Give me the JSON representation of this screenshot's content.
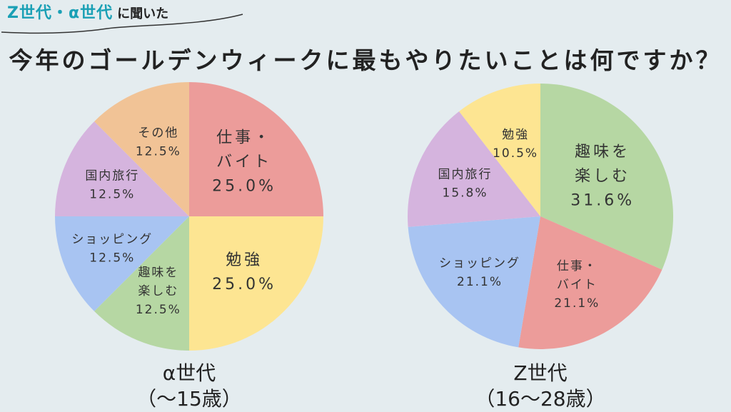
{
  "header": {
    "tag_colored": "Z世代・α世代",
    "tag_plain": "に聞いた",
    "title": "今年のゴールデンウィークに最もやりたいことは何ですか？"
  },
  "chart_data": [
    {
      "type": "pie",
      "name": "α世代",
      "subtitle": "（〜15歳）",
      "slices": [
        {
          "label": "仕事・バイト",
          "lines": [
            "仕事・",
            "バイト"
          ],
          "value": 25.0,
          "value_text": "25.0%",
          "color": "#ec9c9a"
        },
        {
          "label": "勉強",
          "lines": [
            "勉強"
          ],
          "value": 25.0,
          "value_text": "25.0%",
          "color": "#fde592"
        },
        {
          "label": "趣味を楽しむ",
          "lines": [
            "趣味を",
            "楽しむ"
          ],
          "value": 12.5,
          "value_text": "12.5%",
          "color": "#b6d7a3"
        },
        {
          "label": "ショッピング",
          "lines": [
            "ショッピング"
          ],
          "value": 12.5,
          "value_text": "12.5%",
          "color": "#a8c4f2"
        },
        {
          "label": "国内旅行",
          "lines": [
            "国内旅行"
          ],
          "value": 12.5,
          "value_text": "12.5%",
          "color": "#d5b4de"
        },
        {
          "label": "その他",
          "lines": [
            "その他"
          ],
          "value": 12.5,
          "value_text": "12.5%",
          "color": "#f1c396"
        }
      ]
    },
    {
      "type": "pie",
      "name": "Z世代",
      "subtitle": "（16〜28歳）",
      "slices": [
        {
          "label": "趣味を楽しむ",
          "lines": [
            "趣味を",
            "楽しむ"
          ],
          "value": 31.6,
          "value_text": "31.6%",
          "color": "#b6d7a3"
        },
        {
          "label": "仕事・バイト",
          "lines": [
            "仕事・",
            "バイト"
          ],
          "value": 21.1,
          "value_text": "21.1%",
          "color": "#ec9c9a"
        },
        {
          "label": "ショッピング",
          "lines": [
            "ショッピング"
          ],
          "value": 21.1,
          "value_text": "21.1%",
          "color": "#a8c4f2"
        },
        {
          "label": "国内旅行",
          "lines": [
            "国内旅行"
          ],
          "value": 15.8,
          "value_text": "15.8%",
          "color": "#d5b4de"
        },
        {
          "label": "勉強",
          "lines": [
            "勉強"
          ],
          "value": 10.5,
          "value_text": "10.5%",
          "color": "#fde592"
        }
      ]
    }
  ]
}
